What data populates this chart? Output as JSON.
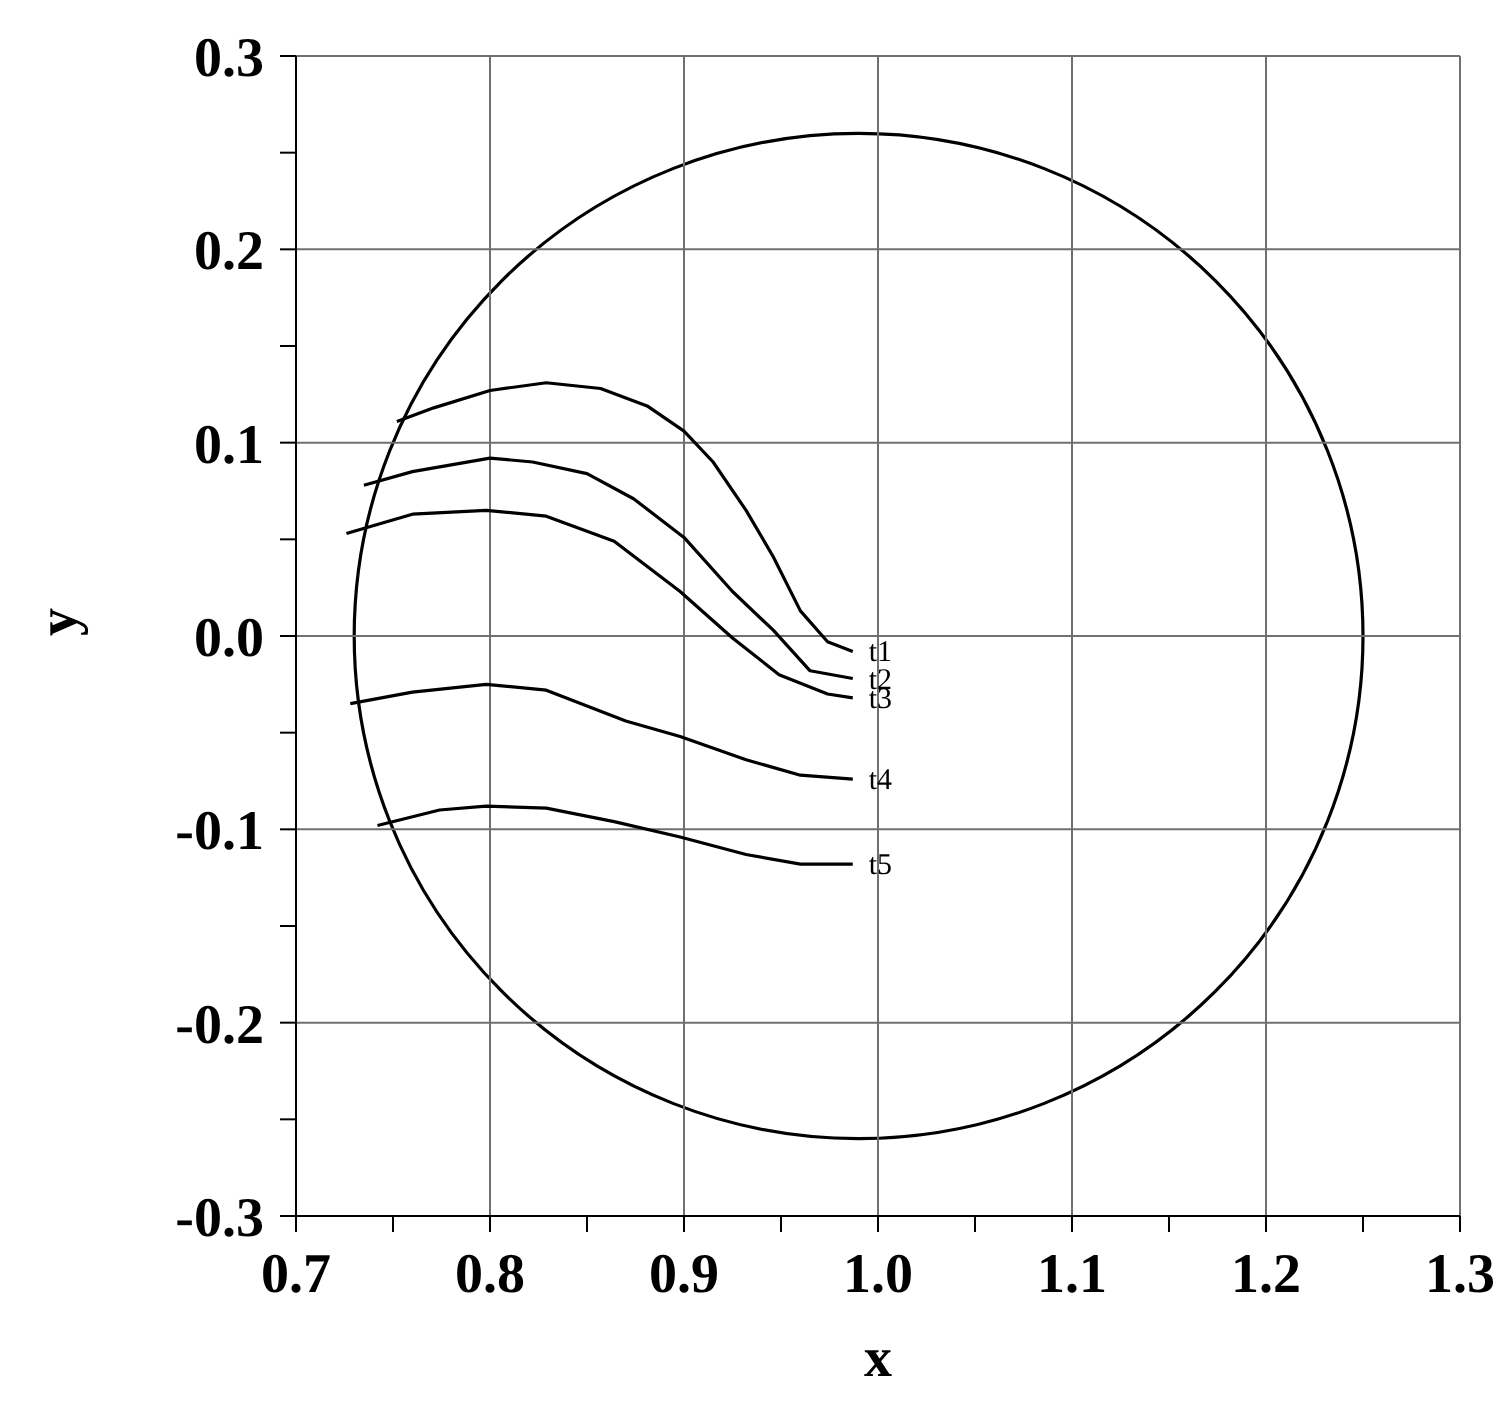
{
  "chart_data": {
    "type": "line",
    "xlabel": "x",
    "ylabel": "y",
    "xlim": [
      0.7,
      1.3
    ],
    "ylim": [
      -0.3,
      0.3
    ],
    "xticks": [
      0.7,
      {
        "value": 0.75,
        "label": null
      },
      0.8,
      {
        "value": 0.85,
        "label": null
      },
      0.9,
      {
        "value": 0.95,
        "label": null
      },
      {
        "value": 1,
        "label": "1.0"
      },
      {
        "value": 1.05,
        "label": null
      },
      1.1,
      {
        "value": 1.15,
        "label": null
      },
      1.2,
      {
        "value": 1.25,
        "label": null
      },
      1.3
    ],
    "yticks": [
      -0.3,
      {
        "value": -0.25,
        "label": null
      },
      -0.2,
      {
        "value": -0.15,
        "label": null
      },
      -0.1,
      {
        "value": -0.05,
        "label": null
      },
      {
        "value": 0,
        "label": "0.0"
      },
      {
        "value": 0.05,
        "label": null
      },
      0.1,
      {
        "value": 0.15,
        "label": null
      },
      0.2,
      {
        "value": 0.25,
        "label": null
      },
      0.3
    ],
    "grid": true,
    "legend": false,
    "marker": "none",
    "line_style": "solid",
    "series": [
      {
        "name": "t1",
        "color": "#000000",
        "x": [
          0.752,
          0.771,
          0.8,
          0.829,
          0.857,
          0.881,
          0.9,
          0.915,
          0.932,
          0.946,
          0.96,
          0.974,
          0.987
        ],
        "values": [
          0.111,
          0.118,
          0.127,
          0.131,
          0.128,
          0.119,
          0.106,
          0.09,
          0.065,
          0.041,
          0.013,
          -0.003,
          -0.008
        ]
      },
      {
        "name": "t2",
        "color": "#000000",
        "x": [
          0.735,
          0.76,
          0.8,
          0.822,
          0.85,
          0.874,
          0.9,
          0.925,
          0.946,
          0.965,
          0.987
        ],
        "values": [
          0.078,
          0.085,
          0.092,
          0.09,
          0.084,
          0.071,
          0.051,
          0.023,
          0.003,
          -0.018,
          -0.022
        ]
      },
      {
        "name": "t3",
        "color": "#000000",
        "x": [
          0.726,
          0.76,
          0.798,
          0.829,
          0.864,
          0.898,
          0.925,
          0.949,
          0.974,
          0.987
        ],
        "values": [
          0.053,
          0.063,
          0.065,
          0.062,
          0.049,
          0.023,
          -0.001,
          -0.02,
          -0.03,
          -0.032
        ]
      },
      {
        "name": "t4",
        "color": "#000000",
        "x": [
          0.728,
          0.76,
          0.798,
          0.829,
          0.87,
          0.898,
          0.932,
          0.96,
          0.987
        ],
        "values": [
          -0.035,
          -0.029,
          -0.025,
          -0.028,
          -0.044,
          -0.052,
          -0.064,
          -0.072,
          -0.074
        ]
      },
      {
        "name": "t5",
        "color": "#000000",
        "x": [
          0.742,
          0.774,
          0.798,
          0.829,
          0.864,
          0.898,
          0.932,
          0.96,
          0.987
        ],
        "values": [
          -0.098,
          -0.09,
          -0.088,
          -0.089,
          -0.096,
          -0.104,
          -0.113,
          -0.118,
          -0.118
        ]
      }
    ]
  }
}
